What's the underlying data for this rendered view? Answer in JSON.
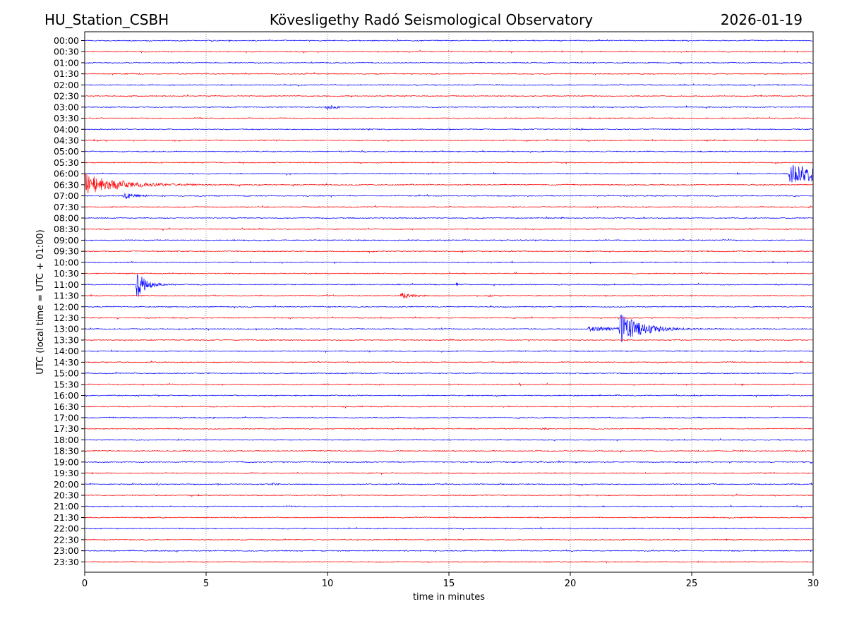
{
  "header": {
    "station": "HU_Station_CSBH",
    "observatory": "Kövesligethy Radó Seismological Observatory",
    "date": "2026-01-19"
  },
  "chart_data": {
    "type": "line",
    "subtype": "helicorder",
    "title": "Kövesligethy Radó Seismological Observatory",
    "xlabel": "time in minutes",
    "ylabel": "UTC (local time = UTC + 01:00)",
    "xlim": [
      0,
      30
    ],
    "x_ticks": [
      "0",
      "5",
      "10",
      "15",
      "20",
      "25",
      "30"
    ],
    "x_tick_values": [
      0,
      5,
      10,
      15,
      20,
      25,
      30
    ],
    "row_labels": [
      "00:00",
      "00:30",
      "01:00",
      "01:30",
      "02:00",
      "02:30",
      "03:00",
      "03:30",
      "04:00",
      "04:30",
      "05:00",
      "05:30",
      "06:00",
      "06:30",
      "07:00",
      "07:30",
      "08:00",
      "08:30",
      "09:00",
      "09:30",
      "10:00",
      "10:30",
      "11:00",
      "11:30",
      "12:00",
      "12:30",
      "13:00",
      "13:30",
      "14:00",
      "14:30",
      "15:00",
      "15:30",
      "16:00",
      "16:30",
      "17:00",
      "17:30",
      "18:00",
      "18:30",
      "19:00",
      "19:30",
      "20:00",
      "20:30",
      "21:00",
      "21:30",
      "22:00",
      "22:30",
      "23:00",
      "23:30"
    ],
    "colors": {
      "even_rows": "#0000ff",
      "odd_rows": "#ff0000",
      "grid": "#555555"
    },
    "grid": "vertical dotted at x ticks",
    "events": [
      {
        "row": "03:00",
        "start_min": 9.9,
        "duration_min": 0.6,
        "peak": 5,
        "decay_min": 0.3
      },
      {
        "row": "06:00",
        "start_min": 29.0,
        "duration_min": 1.0,
        "peak": 13,
        "decay_min": 5
      },
      {
        "row": "06:30",
        "start_min": 0.0,
        "duration_min": 11,
        "peak": 16,
        "decay_min": 1.3
      },
      {
        "row": "07:00",
        "start_min": 1.6,
        "duration_min": 1.2,
        "peak": 4,
        "decay_min": 0.5
      },
      {
        "row": "11:00",
        "start_min": 2.1,
        "duration_min": 1.8,
        "peak": 24,
        "decay_min": 0.35
      },
      {
        "row": "11:00",
        "start_min": 15.3,
        "duration_min": 0.2,
        "peak": 6,
        "decay_min": 0.05
      },
      {
        "row": "11:30",
        "start_min": 13.0,
        "duration_min": 1.5,
        "peak": 5,
        "decay_min": 0.4
      },
      {
        "row": "11:30",
        "start_min": 16.6,
        "duration_min": 0.4,
        "peak": 2,
        "decay_min": 0.2
      },
      {
        "row": "13:00",
        "start_min": 20.7,
        "duration_min": 1.3,
        "peak": 3,
        "decay_min": 2
      },
      {
        "row": "13:00",
        "start_min": 22.0,
        "duration_min": 5.2,
        "peak": 26,
        "decay_min": 0.8
      },
      {
        "row": "17:30",
        "start_min": 18.8,
        "duration_min": 0.4,
        "peak": 3,
        "decay_min": 0.15
      },
      {
        "row": "20:00",
        "start_min": 7.7,
        "duration_min": 0.4,
        "peak": 2,
        "decay_min": 0.2
      }
    ]
  }
}
